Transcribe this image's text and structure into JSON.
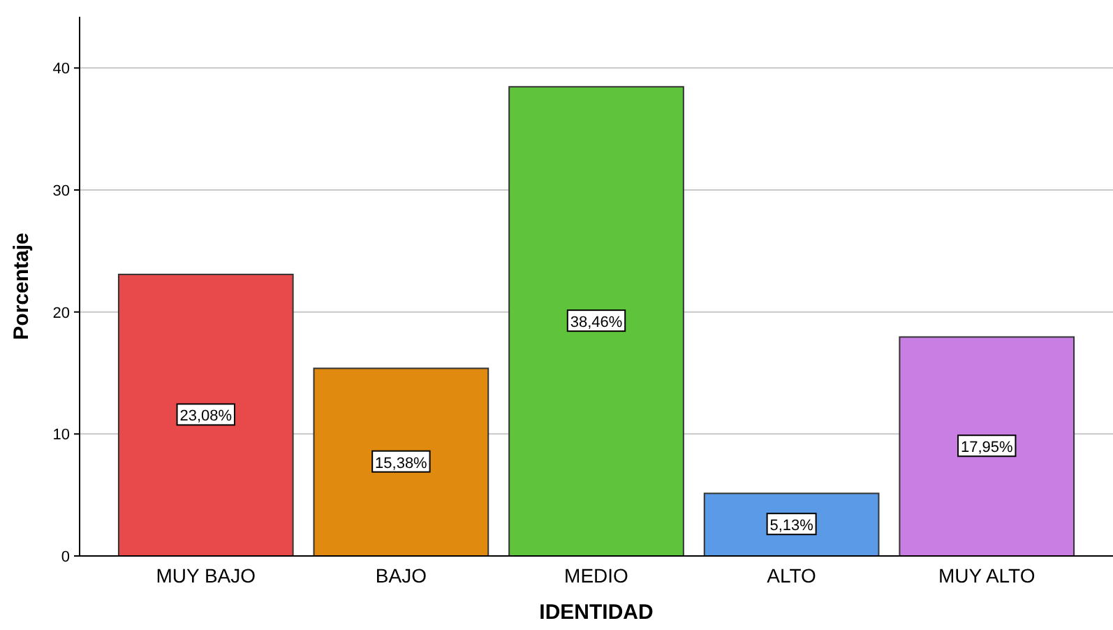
{
  "chart_data": {
    "type": "bar",
    "xlabel": "IDENTIDAD",
    "ylabel": "Porcentaje",
    "categories": [
      "MUY BAJO",
      "BAJO",
      "MEDIO",
      "ALTO",
      "MUY ALTO"
    ],
    "values": [
      23.08,
      15.38,
      38.46,
      5.13,
      17.95
    ],
    "colors": [
      "#e8494b",
      "#e08b10",
      "#5fc43b",
      "#5a9ae6",
      "#c87ee2"
    ],
    "value_labels": [
      "23,08%",
      "15,38%",
      "38,46%",
      "5,13%",
      "17,95%"
    ],
    "ylim": [
      0,
      44.2
    ],
    "yticks": [
      0,
      10,
      20,
      30,
      40
    ],
    "grid": "y"
  }
}
